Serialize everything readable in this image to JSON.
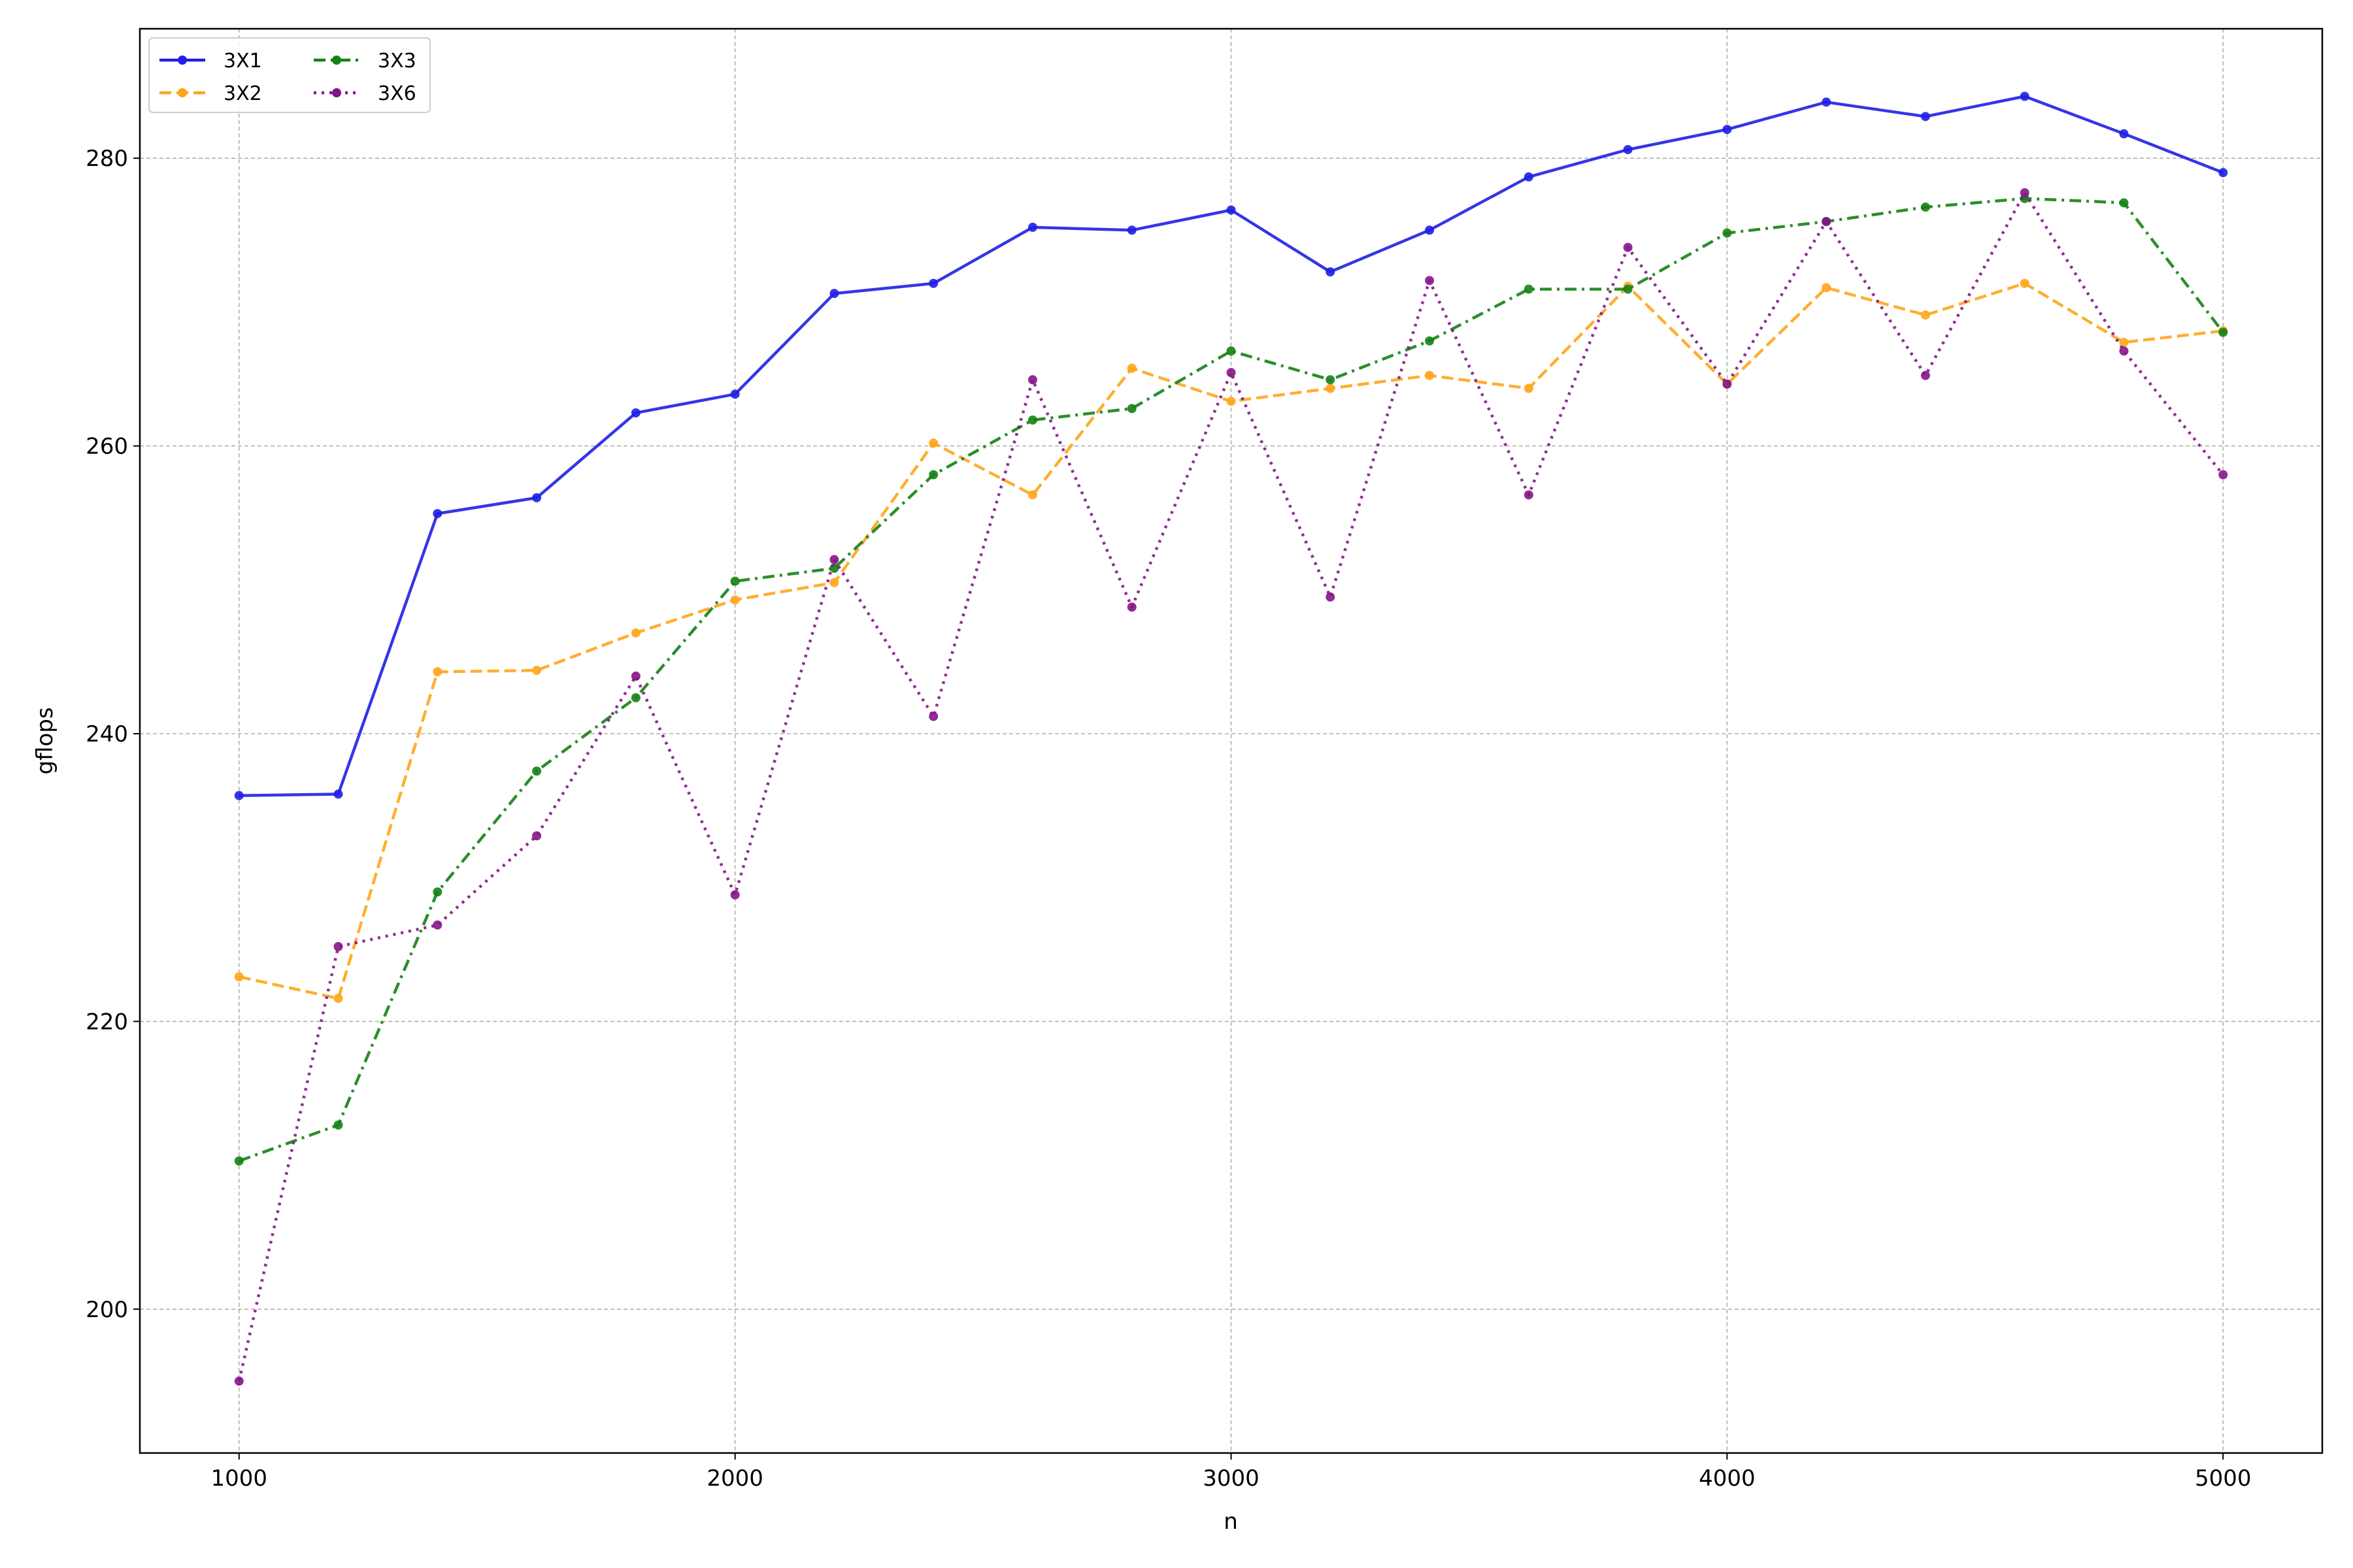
{
  "chart_data": {
    "type": "line",
    "title": "",
    "xlabel": "n",
    "ylabel": "gflops",
    "xlim": [
      800,
      5200
    ],
    "ylim": [
      190,
      289
    ],
    "xticks": [
      1000,
      2000,
      3000,
      4000,
      5000
    ],
    "yticks": [
      200,
      220,
      240,
      260,
      280
    ],
    "grid": true,
    "legend_position": "top-left",
    "x": [
      1000,
      1200,
      1400,
      1600,
      1800,
      2000,
      2200,
      2400,
      2600,
      2800,
      3000,
      3200,
      3400,
      3600,
      3800,
      4000,
      4200,
      4400,
      4600,
      4800,
      5000
    ],
    "series": [
      {
        "name": "3X1",
        "color": "#1f1fe6",
        "line_style": "solid",
        "values": [
          235.7,
          235.8,
          255.3,
          256.4,
          262.3,
          263.6,
          270.6,
          271.3,
          275.2,
          275.0,
          276.4,
          272.1,
          275.0,
          278.7,
          280.6,
          282.0,
          283.9,
          282.9,
          284.3,
          281.7,
          279.0
        ]
      },
      {
        "name": "3X2",
        "color": "#ffa51a",
        "line_style": "dashed",
        "values": [
          223.1,
          221.6,
          244.3,
          244.4,
          247.0,
          249.3,
          250.5,
          260.2,
          256.6,
          265.4,
          263.1,
          264.0,
          264.9,
          264.0,
          271.1,
          264.3,
          271.0,
          269.1,
          271.3,
          267.2,
          268.0
        ]
      },
      {
        "name": "3X3",
        "color": "#148214",
        "line_style": "dashdot",
        "values": [
          210.3,
          212.8,
          229.0,
          237.4,
          242.5,
          250.6,
          251.5,
          258.0,
          261.8,
          262.6,
          266.6,
          264.6,
          267.3,
          270.9,
          270.9,
          274.8,
          275.6,
          276.6,
          277.2,
          276.9,
          267.9
        ]
      },
      {
        "name": "3X6",
        "color": "#85148a",
        "line_style": "dotted",
        "values": [
          195.0,
          225.2,
          226.7,
          232.9,
          244.0,
          228.8,
          252.1,
          241.2,
          264.6,
          248.8,
          265.1,
          249.5,
          271.5,
          256.6,
          273.8,
          264.3,
          275.6,
          264.9,
          277.6,
          266.6,
          258.0
        ]
      }
    ]
  }
}
